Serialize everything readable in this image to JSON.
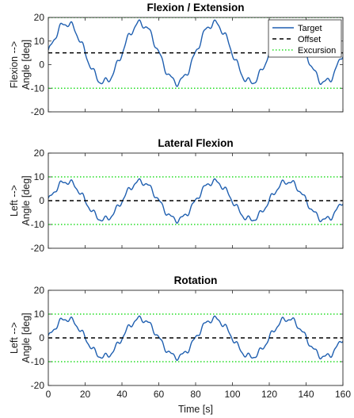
{
  "colors": {
    "target": "#1f5fb0",
    "offset": "#000000",
    "excursion": "#22dd22"
  },
  "x_axis": {
    "label": "Time [s]",
    "ticks": [
      0,
      20,
      40,
      60,
      80,
      100,
      120,
      140,
      160
    ],
    "range": [
      0,
      160
    ]
  },
  "legend": {
    "placement": "top-right of first panel",
    "entries": [
      "Target",
      "Offset",
      "Excursion"
    ]
  },
  "chart_data": [
    {
      "type": "line",
      "title": "Flexion / Extension",
      "ylabel_line1": "Flexion -->",
      "ylabel_line2": "Angle [deg]",
      "xlabel": "",
      "ylim": [
        -20,
        20
      ],
      "yticks": [
        -20,
        -10,
        0,
        10,
        20
      ],
      "xlim": [
        0,
        160
      ],
      "signal": {
        "period_s": 40,
        "baseline_deg": 5,
        "amplitude_deg": 12.5,
        "ripple_deg": 1.3,
        "ripple_period_s": 6
      },
      "series": [
        {
          "name": "Target",
          "style": "solid",
          "x": [
            0,
            5,
            10,
            15,
            20,
            25,
            30,
            35,
            40,
            45,
            50,
            55,
            60,
            65,
            70,
            75,
            80,
            85,
            90,
            95,
            100,
            105,
            110,
            115,
            120,
            125,
            130,
            135,
            140,
            145,
            150,
            155,
            160
          ],
          "y": [
            6,
            13,
            17.5,
            14,
            5,
            -4,
            -8,
            -3,
            6,
            13,
            17.5,
            14,
            5,
            -4,
            -8,
            -3,
            6,
            13,
            17.5,
            14,
            5,
            -4,
            -8,
            -3,
            6,
            13,
            17.5,
            14,
            5,
            -4,
            -8,
            -3,
            5
          ]
        },
        {
          "name": "Offset",
          "style": "dashed",
          "x": [
            0,
            160
          ],
          "y": [
            5,
            5
          ]
        },
        {
          "name": "Excursion",
          "style": "dotted",
          "x": [
            0,
            160
          ],
          "y": [
            20,
            20
          ]
        },
        {
          "name": "Excursion",
          "style": "dotted",
          "x": [
            0,
            160
          ],
          "y": [
            -10,
            -10
          ]
        }
      ]
    },
    {
      "type": "line",
      "title": "Lateral Flexion",
      "ylabel_line1": "Left -->",
      "ylabel_line2": "Angle [deg]",
      "xlabel": "",
      "ylim": [
        -20,
        20
      ],
      "yticks": [
        -20,
        -10,
        0,
        10,
        20
      ],
      "xlim": [
        0,
        160
      ],
      "signal": {
        "period_s": 40,
        "baseline_deg": 0,
        "amplitude_deg": 8,
        "ripple_deg": 1.0,
        "ripple_period_s": 6
      },
      "series": [
        {
          "name": "Target",
          "style": "solid",
          "x": [
            0,
            5,
            10,
            15,
            20,
            25,
            30,
            35,
            40,
            45,
            50,
            55,
            60,
            65,
            70,
            75,
            80,
            85,
            90,
            95,
            100,
            105,
            110,
            115,
            120,
            125,
            130,
            135,
            140,
            145,
            150,
            155,
            160
          ],
          "y": [
            1,
            5.5,
            8.5,
            6,
            0,
            -5.5,
            -8.5,
            -6,
            0,
            5.5,
            8.5,
            6,
            0,
            -5.5,
            -8.5,
            -6,
            0,
            5.5,
            8.5,
            6,
            0,
            -5.5,
            -8.5,
            -6,
            0,
            5.5,
            8.5,
            6,
            0,
            -5.5,
            -8.5,
            -6,
            0
          ]
        },
        {
          "name": "Offset",
          "style": "dashed",
          "x": [
            0,
            160
          ],
          "y": [
            0,
            0
          ]
        },
        {
          "name": "Excursion",
          "style": "dotted",
          "x": [
            0,
            160
          ],
          "y": [
            10,
            10
          ]
        },
        {
          "name": "Excursion",
          "style": "dotted",
          "x": [
            0,
            160
          ],
          "y": [
            -10,
            -10
          ]
        }
      ]
    },
    {
      "type": "line",
      "title": "Rotation",
      "ylabel_line1": "Left -->",
      "ylabel_line2": "Angle [deg]",
      "xlabel": "Time [s]",
      "ylim": [
        -20,
        20
      ],
      "yticks": [
        -20,
        -10,
        0,
        10,
        20
      ],
      "xlim": [
        0,
        160
      ],
      "signal": {
        "period_s": 40,
        "baseline_deg": 0,
        "amplitude_deg": 8,
        "ripple_deg": 1.0,
        "ripple_period_s": 6
      },
      "series": [
        {
          "name": "Target",
          "style": "solid",
          "x": [
            0,
            5,
            10,
            15,
            20,
            25,
            30,
            35,
            40,
            45,
            50,
            55,
            60,
            65,
            70,
            75,
            80,
            85,
            90,
            95,
            100,
            105,
            110,
            115,
            120,
            125,
            130,
            135,
            140,
            145,
            150,
            155,
            160
          ],
          "y": [
            1,
            5.5,
            8.5,
            6,
            0,
            -5.5,
            -8.5,
            -6,
            0,
            5.5,
            8.5,
            6,
            0,
            -5.5,
            -8.5,
            -6,
            0,
            5.5,
            8.5,
            6,
            0,
            -5.5,
            -8.5,
            -6,
            0,
            5.5,
            8.5,
            6,
            0,
            -5.5,
            -8.5,
            -6,
            0
          ]
        },
        {
          "name": "Offset",
          "style": "dashed",
          "x": [
            0,
            160
          ],
          "y": [
            0,
            0
          ]
        },
        {
          "name": "Excursion",
          "style": "dotted",
          "x": [
            0,
            160
          ],
          "y": [
            10,
            10
          ]
        },
        {
          "name": "Excursion",
          "style": "dotted",
          "x": [
            0,
            160
          ],
          "y": [
            -10,
            -10
          ]
        }
      ]
    }
  ]
}
